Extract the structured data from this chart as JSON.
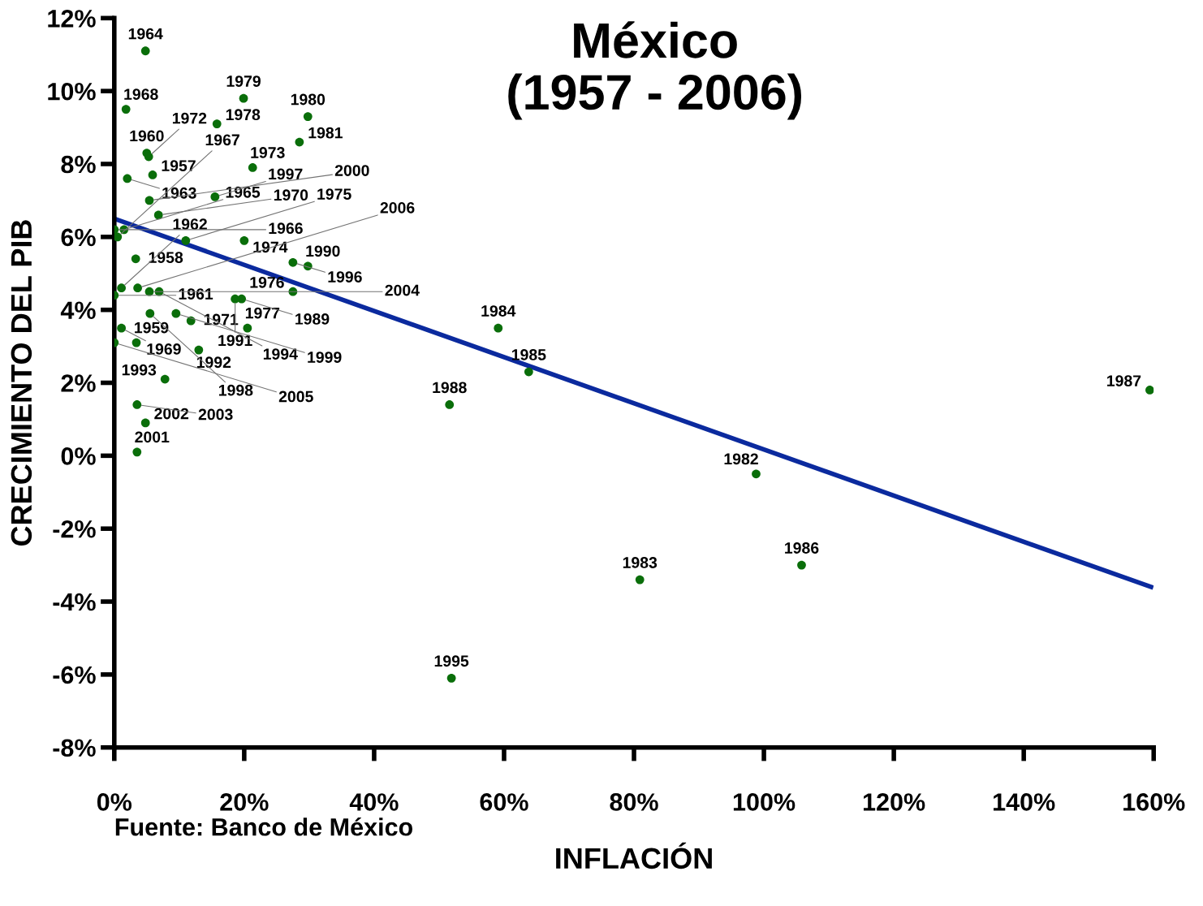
{
  "chart_data": {
    "type": "scatter",
    "title": "México\n(1957 - 2006)",
    "xlabel": "INFLACIÓN",
    "ylabel": "CRECIMIENTO DEL PIB",
    "xlim": [
      0,
      160
    ],
    "xticks": [
      {
        "value": 0,
        "label": "0%"
      },
      {
        "value": 20,
        "label": "20%"
      },
      {
        "value": 40,
        "label": "40%"
      },
      {
        "value": 60,
        "label": "60%"
      },
      {
        "value": 80,
        "label": "80%"
      },
      {
        "value": 100,
        "label": "100%"
      },
      {
        "value": 120,
        "label": "120%"
      },
      {
        "value": 140,
        "label": "140%"
      },
      {
        "value": 160,
        "label": "160%"
      }
    ],
    "ylim": [
      -8,
      12
    ],
    "yticks": [
      {
        "value": -8,
        "label": "-8%"
      },
      {
        "value": -6,
        "label": "-6%"
      },
      {
        "value": -4,
        "label": "-4%"
      },
      {
        "value": -2,
        "label": "-2%"
      },
      {
        "value": 0,
        "label": "0%"
      },
      {
        "value": 2,
        "label": "2%"
      },
      {
        "value": 4,
        "label": "4%"
      },
      {
        "value": 6,
        "label": "6%"
      },
      {
        "value": 8,
        "label": "8%"
      },
      {
        "value": 10,
        "label": "10%"
      },
      {
        "value": 12,
        "label": "12%"
      }
    ],
    "grid": false,
    "legend": false,
    "marker": "circle",
    "series": [
      {
        "color": "#0a6e0a",
        "x": [
          5.9,
          3.3,
          3.4,
          5.0,
          0.0,
          1.1,
          2.0,
          4.8,
          1.5,
          0.0,
          0.5,
          1.8,
          1.1,
          6.8,
          11.8,
          5.3,
          21.3,
          20.0,
          11.0,
          27.5,
          20.5,
          15.8,
          19.9,
          29.8,
          28.5,
          98.8,
          80.9,
          59.1,
          63.8,
          105.8,
          159.4,
          51.6,
          19.6,
          29.8,
          18.6,
          13.0,
          7.8,
          6.9,
          51.9,
          27.5,
          15.5,
          5.5,
          9.5,
          5.4,
          3.5,
          4.8,
          3.5,
          5.4,
          0.0,
          3.6
        ],
        "values": [
          7.7,
          5.4,
          3.1,
          8.3,
          4.4,
          4.6,
          7.6,
          11.1,
          6.2,
          6.2,
          6.0,
          9.5,
          3.5,
          6.6,
          3.7,
          8.2,
          7.9,
          5.9,
          5.9,
          4.5,
          3.5,
          9.1,
          9.8,
          9.3,
          8.6,
          -0.5,
          -3.4,
          3.5,
          2.3,
          -3.0,
          1.8,
          1.4,
          4.3,
          5.2,
          4.3,
          2.9,
          2.1,
          4.5,
          -6.1,
          5.3,
          7.1,
          3.9,
          3.9,
          7.0,
          0.1,
          0.9,
          1.4,
          4.5,
          3.1,
          4.6
        ]
      },
      {
        "type": "line",
        "color": "#0b2a9e",
        "x": [
          0,
          159.6
        ],
        "values": [
          6.5,
          -3.6
        ],
        "marker": "none"
      }
    ],
    "annotations": [
      {
        "text": "1957",
        "x": 5.9,
        "y": 7.7
      },
      {
        "text": "1958",
        "x": 3.3,
        "y": 5.4
      },
      {
        "text": "1959",
        "x": 3.4,
        "y": 3.1
      },
      {
        "text": "1960",
        "x": 5.0,
        "y": 8.3
      },
      {
        "text": "1961",
        "x": 0.0,
        "y": 4.4
      },
      {
        "text": "1962",
        "x": 1.1,
        "y": 4.6
      },
      {
        "text": "1963",
        "x": 2.0,
        "y": 7.6
      },
      {
        "text": "1964",
        "x": 4.8,
        "y": 11.1
      },
      {
        "text": "1965",
        "x": 1.5,
        "y": 6.2
      },
      {
        "text": "1966",
        "x": 0.0,
        "y": 6.2
      },
      {
        "text": "1967",
        "x": 0.5,
        "y": 6.0
      },
      {
        "text": "1968",
        "x": 1.8,
        "y": 9.5
      },
      {
        "text": "1969",
        "x": 1.1,
        "y": 3.5
      },
      {
        "text": "1970",
        "x": 6.8,
        "y": 6.6
      },
      {
        "text": "1971",
        "x": 11.8,
        "y": 3.7
      },
      {
        "text": "1972",
        "x": 5.3,
        "y": 8.2
      },
      {
        "text": "1973",
        "x": 21.3,
        "y": 7.9
      },
      {
        "text": "1974",
        "x": 20.0,
        "y": 5.9
      },
      {
        "text": "1975",
        "x": 11.0,
        "y": 5.9
      },
      {
        "text": "1976",
        "x": 27.5,
        "y": 4.5
      },
      {
        "text": "1977",
        "x": 20.5,
        "y": 3.5
      },
      {
        "text": "1978",
        "x": 15.8,
        "y": 9.1
      },
      {
        "text": "1979",
        "x": 19.9,
        "y": 9.8
      },
      {
        "text": "1980",
        "x": 29.8,
        "y": 9.3
      },
      {
        "text": "1981",
        "x": 28.5,
        "y": 8.6
      },
      {
        "text": "1982",
        "x": 98.8,
        "y": -0.5
      },
      {
        "text": "1983",
        "x": 80.9,
        "y": -3.4
      },
      {
        "text": "1984",
        "x": 59.1,
        "y": 3.5
      },
      {
        "text": "1985",
        "x": 63.8,
        "y": 2.3
      },
      {
        "text": "1986",
        "x": 105.8,
        "y": -3.0
      },
      {
        "text": "1987",
        "x": 159.4,
        "y": 1.8
      },
      {
        "text": "1988",
        "x": 51.6,
        "y": 1.4
      },
      {
        "text": "1989",
        "x": 19.6,
        "y": 4.3
      },
      {
        "text": "1990",
        "x": 29.8,
        "y": 5.2
      },
      {
        "text": "1991",
        "x": 18.6,
        "y": 4.3
      },
      {
        "text": "1992",
        "x": 13.0,
        "y": 2.9
      },
      {
        "text": "1993",
        "x": 7.8,
        "y": 2.1
      },
      {
        "text": "1994",
        "x": 6.9,
        "y": 4.5
      },
      {
        "text": "1995",
        "x": 51.9,
        "y": -6.1
      },
      {
        "text": "1996",
        "x": 27.5,
        "y": 5.3
      },
      {
        "text": "1997",
        "x": 15.5,
        "y": 7.1
      },
      {
        "text": "1998",
        "x": 5.5,
        "y": 3.9
      },
      {
        "text": "1999",
        "x": 9.5,
        "y": 3.9
      },
      {
        "text": "2000",
        "x": 5.4,
        "y": 7.0
      },
      {
        "text": "2001",
        "x": 3.5,
        "y": 0.1
      },
      {
        "text": "2002",
        "x": 4.8,
        "y": 0.9
      },
      {
        "text": "2003",
        "x": 3.5,
        "y": 1.4
      },
      {
        "text": "2004",
        "x": 5.4,
        "y": 4.5
      },
      {
        "text": "2005",
        "x": 0.0,
        "y": 3.1
      },
      {
        "text": "2006",
        "x": 3.6,
        "y": 4.6
      },
      "Fuente: Banco de México"
    ]
  }
}
